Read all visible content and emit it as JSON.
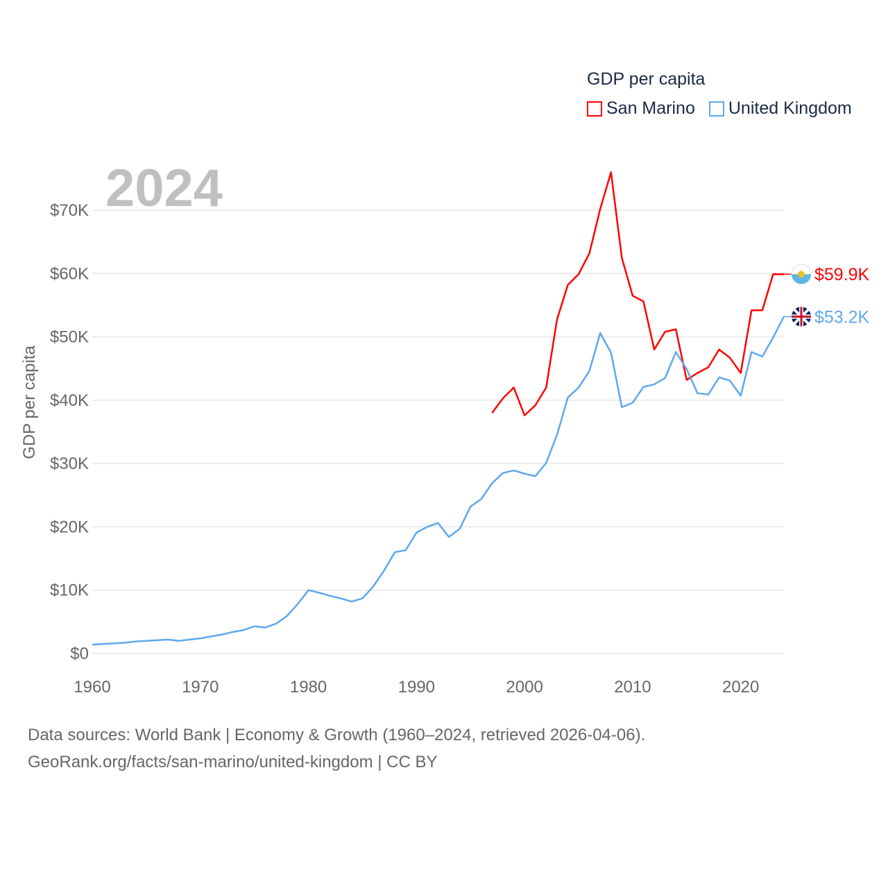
{
  "chart_data": {
    "type": "line",
    "title": "GDP per capita",
    "ylabel": "GDP per capita",
    "xlabel": "",
    "year_label": "2024",
    "xlim": [
      1960,
      2024
    ],
    "ylim": [
      0,
      70000
    ],
    "x_ticks": [
      "1960",
      "1970",
      "1980",
      "1990",
      "2000",
      "2010",
      "2020"
    ],
    "y_ticks": [
      "$0",
      "$10K",
      "$20K",
      "$30K",
      "$40K",
      "$50K",
      "$60K",
      "$70K"
    ],
    "grid": true,
    "legend_position": "top-right",
    "series": [
      {
        "name": "San Marino",
        "color": "#ff0000",
        "end_label": "$59.9K",
        "start_year": 1997,
        "values": [
          38.0,
          40.3,
          42.0,
          37.6,
          39.2,
          42.0,
          52.7,
          58.2,
          59.9,
          63.2,
          70.2,
          76.0,
          62.5,
          56.5,
          55.6,
          48.0,
          50.8,
          51.2,
          43.2,
          44.3,
          45.2,
          48.0,
          46.7,
          44.3,
          54.2,
          54.2,
          59.9,
          59.9
        ]
      },
      {
        "name": "United Kingdom",
        "color": "#5ea8ee",
        "end_label": "$53.2K",
        "start_year": 1960,
        "values": [
          1.4,
          1.5,
          1.6,
          1.7,
          1.9,
          2.0,
          2.1,
          2.2,
          2.0,
          2.2,
          2.4,
          2.7,
          3.0,
          3.4,
          3.7,
          4.3,
          4.1,
          4.7,
          5.9,
          7.8,
          10.0,
          9.6,
          9.1,
          8.7,
          8.2,
          8.7,
          10.6,
          13.1,
          16.0,
          16.3,
          19.1,
          20.0,
          20.6,
          18.4,
          19.7,
          23.2,
          24.4,
          26.9,
          28.5,
          28.9,
          28.4,
          28.0,
          30.1,
          34.5,
          40.4,
          42.0,
          44.6,
          50.6,
          47.5,
          38.9,
          39.6,
          42.1,
          42.5,
          43.5,
          47.6,
          44.9,
          41.1,
          40.9,
          43.6,
          43.1,
          40.7,
          47.6,
          46.9,
          49.9,
          53.2
        ]
      }
    ],
    "value_units": "thousand USD"
  },
  "sources": {
    "line1": "Data sources: World Bank | Economy & Growth (1960–2024, retrieved 2026-04-06).",
    "line2": "GeoRank.org/facts/san-marino/united-kingdom | CC BY"
  }
}
